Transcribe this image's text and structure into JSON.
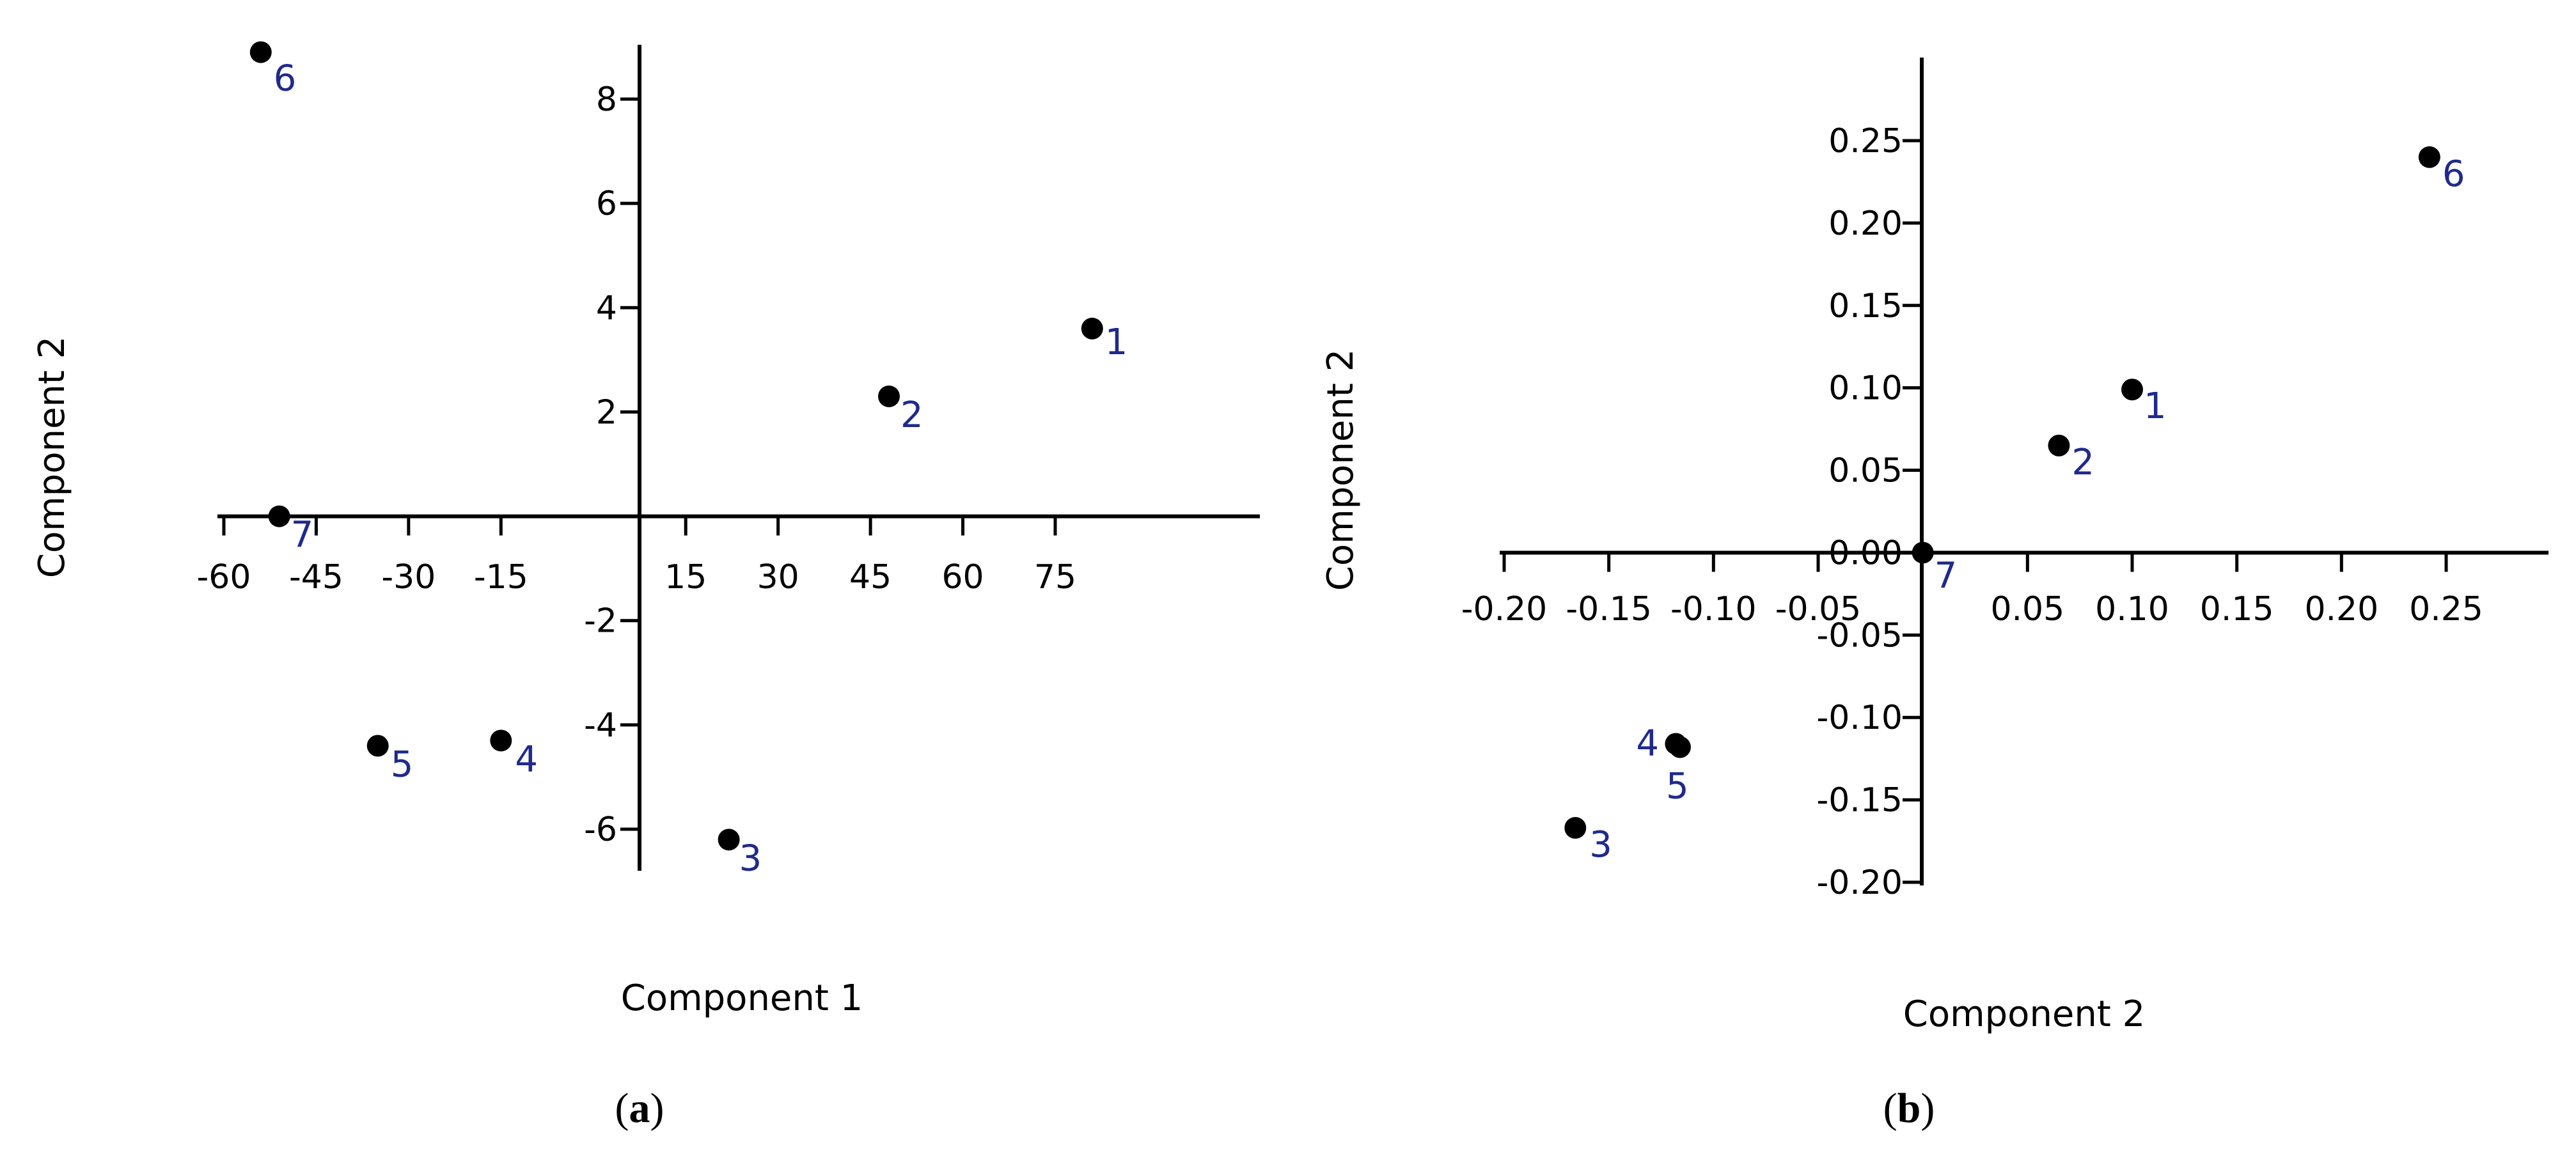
{
  "chart_data": [
    {
      "type": "scatter",
      "panel_label_open": "(",
      "panel_label_letter": "a",
      "panel_label_close": ")",
      "xlabel": "Component 1",
      "ylabel": "Component 2",
      "xlim": [
        -62,
        90
      ],
      "ylim": [
        -7,
        9
      ],
      "xticks": [
        -60,
        -45,
        -30,
        -15,
        15,
        30,
        45,
        60,
        75
      ],
      "xtick_labels": [
        "-60",
        "-45",
        "-30",
        "-15",
        "15",
        "30",
        "45",
        "60",
        "75"
      ],
      "yticks": [
        -6,
        -4,
        -2,
        2,
        4,
        6,
        8
      ],
      "ytick_labels": [
        "-6",
        "-4",
        "-2",
        "2",
        "4",
        "6",
        "8"
      ],
      "grid": false,
      "points": [
        {
          "label": "1",
          "x": 81,
          "y": 3.6
        },
        {
          "label": "2",
          "x": 48,
          "y": 2.3
        },
        {
          "label": "3",
          "x": 22,
          "y": -6.2
        },
        {
          "label": "4",
          "x": -15,
          "y": -4.3
        },
        {
          "label": "5",
          "x": -35,
          "y": -4.4
        },
        {
          "label": "6",
          "x": -54,
          "y": 8.9
        },
        {
          "label": "7",
          "x": -51,
          "y": 0.0
        }
      ]
    },
    {
      "type": "scatter",
      "panel_label_open": "(",
      "panel_label_letter": "b",
      "panel_label_close": ")",
      "xlabel": "Component 2",
      "ylabel": "Component 2",
      "xlim": [
        -0.2,
        0.3
      ],
      "ylim": [
        -0.2,
        0.3
      ],
      "xticks": [
        -0.2,
        -0.15,
        -0.1,
        -0.05,
        0.05,
        0.1,
        0.15,
        0.2,
        0.25
      ],
      "xtick_labels": [
        "-0.20",
        "-0.15",
        "-0.10",
        "-0.05",
        "0.05",
        "0.10",
        "0.15",
        "0.20",
        "0.25"
      ],
      "yticks": [
        -0.2,
        -0.15,
        -0.1,
        -0.05,
        0.0,
        0.05,
        0.1,
        0.15,
        0.2,
        0.25
      ],
      "ytick_labels": [
        "-0.20",
        "-0.15",
        "-0.10",
        "-0.05",
        "0.00",
        "0.05",
        "0.10",
        "0.15",
        "0.20",
        "0.25"
      ],
      "grid": false,
      "points": [
        {
          "label": "1",
          "x": 0.1,
          "y": 0.099
        },
        {
          "label": "2",
          "x": 0.065,
          "y": 0.065
        },
        {
          "label": "3",
          "x": -0.166,
          "y": -0.167
        },
        {
          "label": "4",
          "x": -0.118,
          "y": -0.116
        },
        {
          "label": "5",
          "x": -0.116,
          "y": -0.118
        },
        {
          "label": "6",
          "x": 0.242,
          "y": 0.24
        },
        {
          "label": "7",
          "x": 0.0,
          "y": 0.0
        }
      ]
    }
  ],
  "colors": {
    "point": "#000000",
    "point_label": "#1f2a8c",
    "axis": "#000000"
  }
}
